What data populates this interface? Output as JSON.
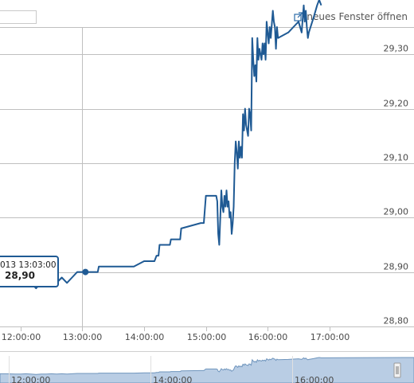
{
  "header": {
    "new_window_label": "neues Fenster öffnen",
    "new_window_icon": "external-link-icon"
  },
  "tooltip": {
    "time": "013 13:03:00",
    "value": "28,90"
  },
  "colors": {
    "series": "#1f5a94",
    "navigator_fill": "#b9cde4",
    "grid": "#bfbfbf"
  },
  "chart_data": {
    "type": "line",
    "title": "",
    "xlabel": "",
    "ylabel": "",
    "grid": true,
    "xlim": [
      "11:40",
      "17:45"
    ],
    "ylim": [
      28.8,
      29.35
    ],
    "x_ticks": [
      "12:00:00",
      "13:00:00",
      "14:00:00",
      "15:00:00",
      "16:00:00",
      "17:00:00"
    ],
    "y_ticks": [
      "28,80",
      "28,90",
      "29,00",
      "29,10",
      "29,20",
      "29,30"
    ],
    "series": [
      {
        "points": [
          [
            "11:40",
            28.89
          ],
          [
            "11:45",
            28.89
          ],
          [
            "11:55",
            28.88
          ],
          [
            "12:00",
            28.88
          ],
          [
            "12:05",
            28.89
          ],
          [
            "12:10",
            28.88
          ],
          [
            "12:15",
            28.87
          ],
          [
            "12:20",
            28.88
          ],
          [
            "12:25",
            28.88
          ],
          [
            "12:30",
            28.89
          ],
          [
            "12:35",
            28.88
          ],
          [
            "12:40",
            28.89
          ],
          [
            "12:45",
            28.88
          ],
          [
            "12:50",
            28.89
          ],
          [
            "12:55",
            28.9
          ],
          [
            "13:03",
            28.9
          ],
          [
            "13:15",
            28.9
          ],
          [
            "13:16",
            28.91
          ],
          [
            "13:50",
            28.91
          ],
          [
            "14:00",
            28.92
          ],
          [
            "14:10",
            28.92
          ],
          [
            "14:12",
            28.93
          ],
          [
            "14:14",
            28.93
          ],
          [
            "14:15",
            28.95
          ],
          [
            "14:25",
            28.95
          ],
          [
            "14:26",
            28.96
          ],
          [
            "14:35",
            28.96
          ],
          [
            "14:36",
            28.98
          ],
          [
            "14:55",
            28.99
          ],
          [
            "14:58",
            28.99
          ],
          [
            "15:00",
            29.04
          ],
          [
            "15:10",
            29.04
          ],
          [
            "15:11",
            29.03
          ],
          [
            "15:12",
            28.97
          ],
          [
            "15:13",
            28.95
          ],
          [
            "15:14",
            29.0
          ],
          [
            "15:15",
            29.05
          ],
          [
            "15:16",
            29.02
          ],
          [
            "15:17",
            29.01
          ],
          [
            "15:18",
            29.04
          ],
          [
            "15:19",
            29.02
          ],
          [
            "15:20",
            29.05
          ],
          [
            "15:21",
            29.02
          ],
          [
            "15:22",
            29.03
          ],
          [
            "15:23",
            29.0
          ],
          [
            "15:24",
            29.01
          ],
          [
            "15:25",
            28.97
          ],
          [
            "15:26",
            28.99
          ],
          [
            "15:27",
            29.02
          ],
          [
            "15:28",
            29.1
          ],
          [
            "15:29",
            29.14
          ],
          [
            "15:30",
            29.12
          ],
          [
            "15:31",
            29.09
          ],
          [
            "15:32",
            29.14
          ],
          [
            "15:33",
            29.11
          ],
          [
            "15:34",
            29.13
          ],
          [
            "15:35",
            29.11
          ],
          [
            "15:36",
            29.19
          ],
          [
            "15:37",
            29.16
          ],
          [
            "15:38",
            29.2
          ],
          [
            "15:39",
            29.17
          ],
          [
            "15:40",
            29.16
          ],
          [
            "15:41",
            29.15
          ],
          [
            "15:42",
            29.2
          ],
          [
            "15:43",
            29.19
          ],
          [
            "15:44",
            29.16
          ],
          [
            "15:45",
            29.33
          ],
          [
            "15:46",
            29.29
          ],
          [
            "15:47",
            29.26
          ],
          [
            "15:48",
            29.28
          ],
          [
            "15:49",
            29.25
          ],
          [
            "15:50",
            29.33
          ],
          [
            "15:51",
            29.29
          ],
          [
            "15:52",
            29.31
          ],
          [
            "15:53",
            29.3
          ],
          [
            "15:54",
            29.29
          ],
          [
            "15:55",
            29.32
          ],
          [
            "15:56",
            29.3
          ],
          [
            "15:57",
            29.32
          ],
          [
            "15:58",
            29.29
          ],
          [
            "15:59",
            29.36
          ],
          [
            "16:01",
            29.32
          ],
          [
            "16:02",
            29.35
          ],
          [
            "16:03",
            29.33
          ],
          [
            "16:05",
            29.38
          ],
          [
            "16:06",
            29.36
          ],
          [
            "16:07",
            29.35
          ],
          [
            "16:08",
            29.31
          ],
          [
            "16:09",
            29.35
          ],
          [
            "16:10",
            29.33
          ],
          [
            "16:20",
            29.34
          ],
          [
            "16:25",
            29.35
          ],
          [
            "16:30",
            29.36
          ],
          [
            "16:33",
            29.34
          ],
          [
            "16:35",
            29.39
          ],
          [
            "16:36",
            29.36
          ],
          [
            "16:37",
            29.38
          ],
          [
            "16:38",
            29.35
          ],
          [
            "16:39",
            29.33
          ],
          [
            "16:40",
            29.34
          ],
          [
            "16:45",
            29.37
          ],
          [
            "16:48",
            29.39
          ],
          [
            "16:50",
            29.4
          ],
          [
            "16:52",
            29.39
          ]
        ]
      }
    ],
    "navigator": {
      "labels": [
        "12:00:00",
        "14:00:00",
        "16:00:00"
      ]
    }
  }
}
